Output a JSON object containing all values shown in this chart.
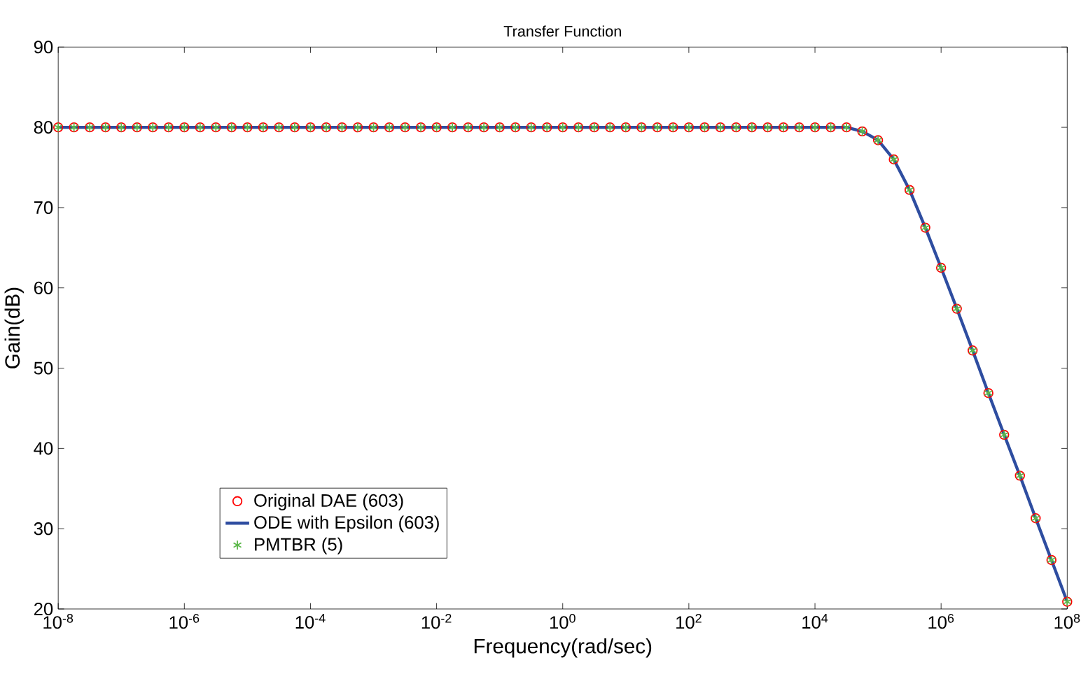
{
  "chart_data": {
    "type": "line",
    "title": "Transfer Function",
    "xlabel": "Frequency(rad/sec)",
    "ylabel": "Gain(dB)",
    "log": "x",
    "legend": "bottom left",
    "xlim": [
      1e-08,
      100000000.0
    ],
    "ylim": [
      20,
      90
    ],
    "xticks": [
      {
        "value": 1e-08,
        "label": "10$^{-8}$"
      },
      {
        "value": 1e-06,
        "label": "10$^{-6}$"
      },
      {
        "value": 0.0001,
        "label": "10$^{-4}$"
      },
      {
        "value": 0.01,
        "label": "10$^{-2}$"
      },
      {
        "value": 1,
        "label": "10$^{0}$"
      },
      {
        "value": 100.0,
        "label": "10$^{2}$"
      },
      {
        "value": 10000.0,
        "label": "10$^{4}$"
      },
      {
        "value": 1000000.0,
        "label": "10$^{6}$"
      },
      {
        "value": 100000000.0,
        "label": "10$^{8}$"
      }
    ],
    "yticks": [
      20,
      30,
      40,
      50,
      60,
      70,
      80,
      90
    ],
    "x": [
      1e-08,
      1.778e-08,
      3.162e-08,
      5.623e-08,
      1e-07,
      1.778e-07,
      3.162e-07,
      5.623e-07,
      1e-06,
      1.778e-06,
      3.162e-06,
      5.623e-06,
      1e-05,
      1.778e-05,
      3.162e-05,
      5.623e-05,
      0.0001,
      0.0001778,
      0.0003162,
      0.0005623,
      0.001,
      0.001778,
      0.003162,
      0.005623,
      0.01,
      0.01778,
      0.03162,
      0.05623,
      0.1,
      0.1778,
      0.3162,
      0.5623,
      1,
      1.778,
      3.162,
      5.623,
      10,
      17.78,
      31.62,
      56.23,
      100,
      177.8,
      316.2,
      562.3,
      1000,
      1778,
      3162,
      5623,
      10000,
      17780,
      31620,
      56230,
      100000,
      177800,
      316200,
      562300,
      1000000,
      1778000,
      3162000,
      5623000,
      10000000,
      17780000,
      31620000,
      56230000,
      100000000
    ],
    "series": [
      {
        "name": "Original DAE (603)",
        "type": "scatter",
        "marker": "circle",
        "color": "#ff0000",
        "values": [
          80,
          80,
          80,
          80,
          80,
          80,
          80,
          80,
          80,
          80,
          80,
          80,
          80,
          80,
          80,
          80,
          80,
          80,
          80,
          80,
          80,
          80,
          80,
          80,
          80,
          80,
          80,
          80,
          80,
          80,
          80,
          80,
          80,
          80,
          80,
          80,
          80,
          80,
          80,
          80,
          80,
          80,
          80,
          80,
          80,
          80,
          80,
          80,
          80,
          80,
          80,
          79.5,
          78.4,
          76.0,
          72.2,
          67.5,
          62.5,
          57.4,
          52.2,
          46.9,
          41.7,
          36.6,
          31.3,
          26.1,
          20.9
        ]
      },
      {
        "name": "ODE with Epsilon (603)",
        "line_style": "solid",
        "color": "#2e4da0",
        "values": [
          80,
          80,
          80,
          80,
          80,
          80,
          80,
          80,
          80,
          80,
          80,
          80,
          80,
          80,
          80,
          80,
          80,
          80,
          80,
          80,
          80,
          80,
          80,
          80,
          80,
          80,
          80,
          80,
          80,
          80,
          80,
          80,
          80,
          80,
          80,
          80,
          80,
          80,
          80,
          80,
          80,
          80,
          80,
          80,
          80,
          80,
          80,
          80,
          80,
          80,
          80,
          79.5,
          78.4,
          76.0,
          72.2,
          67.5,
          62.5,
          57.4,
          52.2,
          46.9,
          41.7,
          36.6,
          31.3,
          26.1,
          20.9
        ]
      },
      {
        "name": "PMTBR (5)",
        "type": "scatter",
        "marker": "cross",
        "color": "#5cb84a",
        "values": [
          80,
          80,
          80,
          80,
          80,
          80,
          80,
          80,
          80,
          80,
          80,
          80,
          80,
          80,
          80,
          80,
          80,
          80,
          80,
          80,
          80,
          80,
          80,
          80,
          80,
          80,
          80,
          80,
          80,
          80,
          80,
          80,
          80,
          80,
          80,
          80,
          80,
          80,
          80,
          80,
          80,
          80,
          80,
          80,
          80,
          80,
          80,
          80,
          80,
          80,
          80,
          79.5,
          78.4,
          76.0,
          72.2,
          67.5,
          62.5,
          57.4,
          52.2,
          46.9,
          41.7,
          36.6,
          31.3,
          26.1,
          20.9
        ]
      }
    ]
  }
}
